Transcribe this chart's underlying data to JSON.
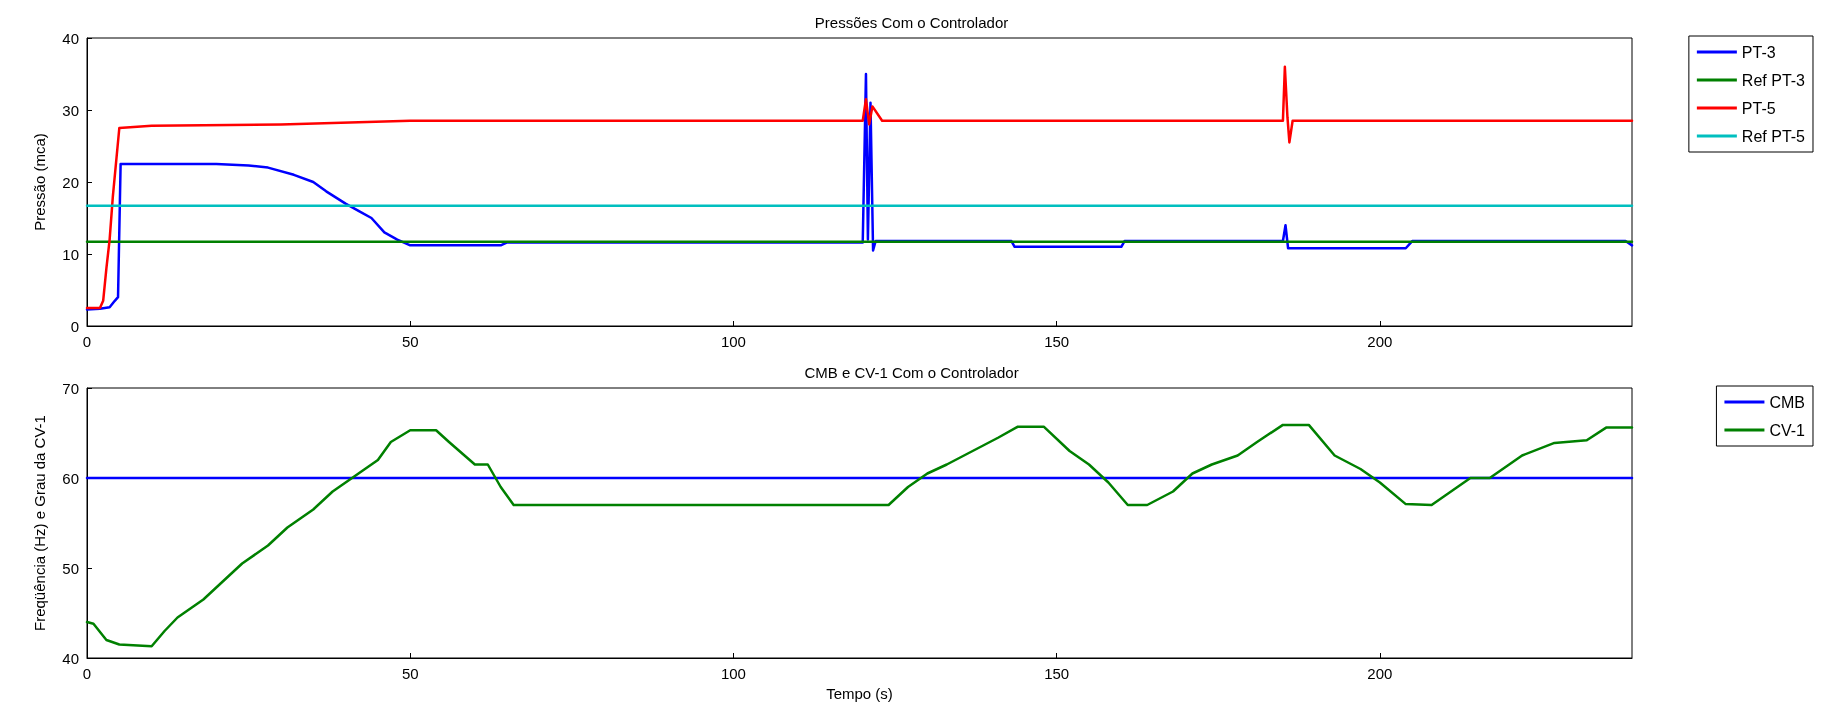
{
  "chart_data": [
    {
      "type": "line",
      "title": "Pressões Com o Controlador",
      "ylabel": "Pressão (mca)",
      "xlim": [
        0,
        239
      ],
      "xticks": [
        0,
        50,
        100,
        150,
        200
      ],
      "ylim": [
        0,
        40
      ],
      "yticks": [
        0,
        10,
        20,
        30,
        40
      ],
      "grid": false,
      "legend": "top right",
      "line_style": "solid",
      "marker": "none",
      "series": [
        {
          "name": "PT-3",
          "color": "#0000ff",
          "x": [
            0,
            2,
            3.5,
            4.3,
            4.8,
            5.2,
            10,
            20,
            25,
            28,
            32,
            35,
            37,
            40,
            42,
            44,
            46,
            48,
            50,
            64,
            65,
            120,
            120.5,
            120.8,
            121.2,
            121.6,
            122,
            122.5,
            143,
            143.5,
            160,
            160.5,
            185,
            185.4,
            185.8,
            186.2,
            204,
            205,
            238,
            239
          ],
          "values": [
            2.3,
            2.4,
            2.6,
            3.5,
            4,
            22.5,
            22.5,
            22.5,
            22.3,
            22,
            21,
            20,
            18.7,
            17,
            16,
            15,
            13,
            12,
            11.2,
            11.2,
            11.6,
            11.6,
            35,
            12,
            31,
            10.5,
            11.8,
            11.8,
            11.8,
            11,
            11,
            11.8,
            11.8,
            14,
            10.8,
            10.8,
            10.8,
            11.8,
            11.8,
            11.2
          ]
        },
        {
          "name": "Ref PT-3",
          "color": "#008000",
          "x": [
            0,
            239
          ],
          "values": [
            11.7,
            11.7
          ]
        },
        {
          "name": "PT-5",
          "color": "#ff0000",
          "x": [
            0,
            2,
            2.5,
            3,
            3.5,
            4,
            5,
            10,
            30,
            50,
            120,
            120.5,
            121,
            121.5,
            123,
            185,
            185.3,
            185.7,
            186,
            186.5,
            239
          ],
          "values": [
            2.5,
            2.5,
            3.5,
            8,
            12,
            18,
            27.5,
            27.8,
            28,
            28.5,
            28.5,
            31.5,
            28,
            30.5,
            28.5,
            28.5,
            36,
            29,
            25.5,
            28.5,
            28.5
          ]
        },
        {
          "name": "Ref PT-5",
          "color": "#00bfbf",
          "x": [
            0,
            239
          ],
          "values": [
            16.7,
            16.7
          ]
        }
      ]
    },
    {
      "type": "line",
      "title": "CMB e CV-1 Com o Controlador",
      "xlabel": "Tempo (s)",
      "ylabel": "Freqüência (Hz) e Grau da CV-1",
      "xlim": [
        0,
        239
      ],
      "xticks": [
        0,
        50,
        100,
        150,
        200
      ],
      "ylim": [
        40,
        70
      ],
      "yticks": [
        40,
        50,
        60,
        70
      ],
      "grid": false,
      "legend": "top right",
      "line_style": "solid",
      "marker": "none",
      "series": [
        {
          "name": "CMB",
          "color": "#0000ff",
          "x": [
            0,
            239
          ],
          "values": [
            60,
            60
          ]
        },
        {
          "name": "CV-1",
          "color": "#008000",
          "x": [
            0,
            1,
            3,
            5,
            10,
            12,
            14,
            18,
            21,
            24,
            28,
            31,
            35,
            38,
            42,
            45,
            47,
            50,
            54,
            56,
            60,
            62,
            64,
            66,
            124,
            127,
            130,
            133,
            137,
            141,
            144,
            148,
            152,
            155,
            158,
            161,
            164,
            168,
            171,
            174,
            178,
            181,
            185,
            189,
            193,
            197,
            200,
            204,
            208,
            211,
            214,
            217,
            219,
            222,
            227,
            232,
            235,
            239
          ],
          "values": [
            44,
            43.8,
            42,
            41.5,
            41.3,
            43,
            44.5,
            46.5,
            48.5,
            50.5,
            52.5,
            54.5,
            56.5,
            58.5,
            60.5,
            62,
            64,
            65.3,
            65.3,
            64,
            61.5,
            61.5,
            59,
            57,
            57,
            59,
            60.5,
            61.5,
            63,
            64.5,
            65.7,
            65.7,
            63,
            61.5,
            59.5,
            57,
            57,
            58.5,
            60.5,
            61.5,
            62.5,
            64,
            65.9,
            65.9,
            62.5,
            61,
            59.5,
            57.1,
            57,
            58.5,
            60,
            60,
            61,
            62.5,
            63.9,
            64.2,
            65.6,
            65.6
          ]
        }
      ]
    }
  ]
}
